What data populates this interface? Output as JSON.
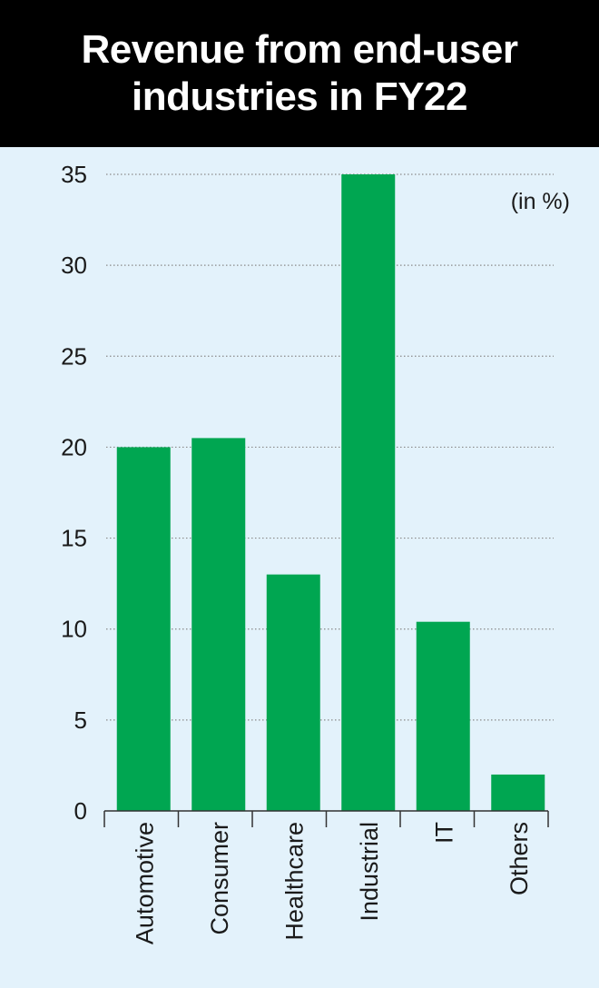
{
  "title": {
    "line1": "Revenue from end-user",
    "line2": "industries in FY22"
  },
  "colors": {
    "header_bg": "#000000",
    "plot_bg": "#e3f2fb",
    "bar": "#00a651",
    "grid": "#8a8a8a",
    "axis": "#333333"
  },
  "chart_data": {
    "type": "bar",
    "title": "Revenue from end-user industries in FY22",
    "unit_label": "(in %)",
    "categories": [
      "Automotive",
      "Consumer",
      "Healthcare",
      "Industrial",
      "IT",
      "Others"
    ],
    "values": [
      20,
      20.5,
      13,
      35,
      10.4,
      2
    ],
    "ylim": [
      0,
      35
    ],
    "yticks": [
      0,
      5,
      10,
      15,
      20,
      25,
      30,
      35
    ],
    "grid": true,
    "xlabel": "",
    "ylabel": ""
  }
}
